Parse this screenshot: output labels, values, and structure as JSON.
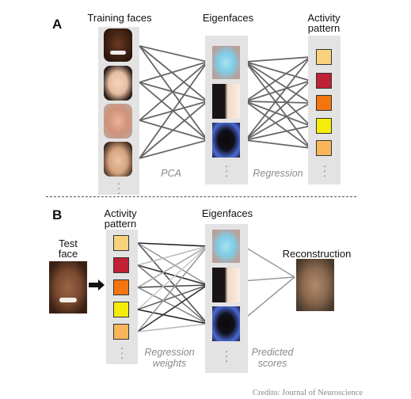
{
  "panel_a": {
    "letter": "A",
    "training_label": "Training faces",
    "eigen_label": "Eigenfaces",
    "activity_label_line1": "Activity",
    "activity_label_line2": "pattern",
    "pca_label": "PCA",
    "regression_label": "Regression"
  },
  "panel_b": {
    "letter": "B",
    "activity_label_line1": "Activity",
    "activity_label_line2": "pattern",
    "eigen_label": "Eigenfaces",
    "test_label_line1": "Test",
    "test_label_line2": "face",
    "reconstruction_label": "Reconstruction",
    "weights_label_line1": "Regression",
    "weights_label_line2": "weights",
    "scores_label_line1": "Predicted",
    "scores_label_line2": "scores"
  },
  "activity_colors": [
    "#f8d27a",
    "#c02134",
    "#f4750f",
    "#f5ec0a",
    "#f8b55a"
  ],
  "credit": "Credito: Journal of Neuroscience"
}
